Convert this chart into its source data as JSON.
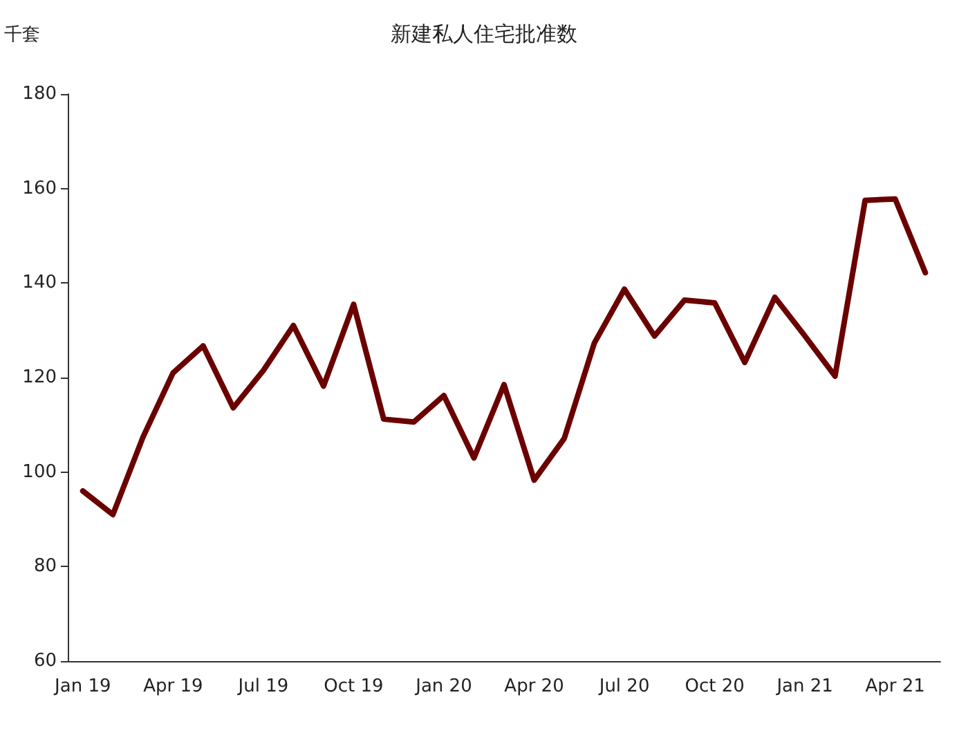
{
  "chart_data": {
    "type": "line",
    "title": "新建私人住宅批准数",
    "ylabel": "千套",
    "categories": [
      "Jan 19",
      null,
      null,
      "Apr 19",
      null,
      null,
      "Jul 19",
      null,
      null,
      "Oct 19",
      null,
      null,
      "Jan 20",
      null,
      null,
      "Apr 20",
      null,
      null,
      "Jul 20",
      null,
      null,
      "Oct 20",
      null,
      null,
      "Jan 21",
      null,
      null,
      "Apr 21",
      null
    ],
    "series": [
      {
        "color": "#6b0000",
        "values": [
          96,
          91,
          107.4,
          121,
          126.7,
          113.6,
          121.5,
          131,
          118.2,
          135.5,
          111.2,
          110.6,
          116.2,
          103,
          118.5,
          98.3,
          107.1,
          127.3,
          138.7,
          128.8,
          136.4,
          135.8,
          123.2,
          137,
          128.8,
          120.3,
          157.5,
          157.8,
          142.2
        ]
      }
    ],
    "ylim": [
      60,
      180
    ],
    "yticks": [
      60,
      80,
      100,
      120,
      140,
      160,
      180
    ],
    "grid": false,
    "marker": "none",
    "line_style": "solid"
  }
}
